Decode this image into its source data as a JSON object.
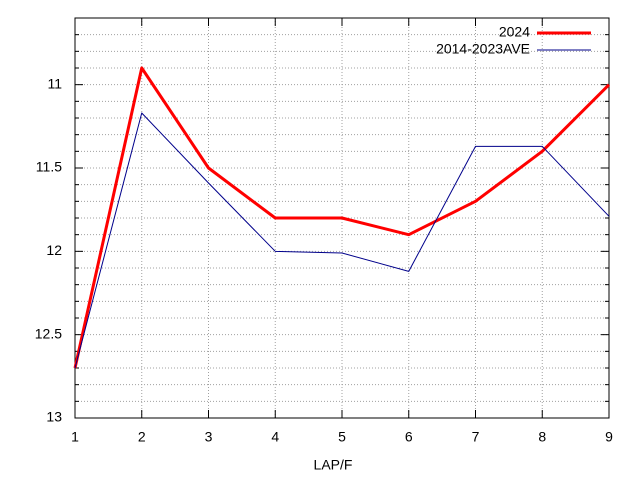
{
  "chart_data": {
    "type": "line",
    "x_label": "LAP/F",
    "x": [
      1,
      2,
      3,
      4,
      5,
      6,
      7,
      8,
      9
    ],
    "xlim": [
      1,
      9
    ],
    "xticks": [
      1,
      2,
      3,
      4,
      5,
      6,
      7,
      8,
      9
    ],
    "ylim": [
      13,
      10.6
    ],
    "yticks": [
      11,
      11.5,
      12,
      12.5,
      13
    ],
    "y_minor_ticks": [
      10.7,
      10.8,
      10.9,
      11.1,
      11.2,
      11.3,
      11.4,
      11.6,
      11.7,
      11.8,
      11.9,
      12.1,
      12.2,
      12.3,
      12.4,
      12.6,
      12.7,
      12.8,
      12.9
    ],
    "grid": true,
    "legend": "top-right",
    "series": [
      {
        "name": "2024",
        "color": "#ff0000",
        "width": 3,
        "values": [
          12.7,
          10.9,
          11.5,
          11.8,
          11.8,
          11.9,
          11.7,
          11.4,
          11.0
        ]
      },
      {
        "name": "2014-2023AVE",
        "color": "#00008b",
        "width": 1,
        "values": [
          12.7,
          11.17,
          11.59,
          12.0,
          12.01,
          12.12,
          11.37,
          11.37,
          11.79
        ]
      }
    ]
  }
}
